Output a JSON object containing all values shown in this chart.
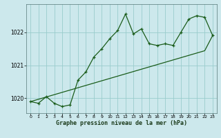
{
  "xlabel": "Graphe pression niveau de la mer (hPa)",
  "bg_color": "#cce8ec",
  "grid_color": "#99cccc",
  "line_color": "#1a5c1a",
  "x_values": [
    0,
    1,
    2,
    3,
    4,
    5,
    6,
    7,
    8,
    9,
    10,
    11,
    12,
    13,
    14,
    15,
    16,
    17,
    18,
    19,
    20,
    21,
    22,
    23
  ],
  "y_main": [
    1019.9,
    1019.85,
    1020.05,
    1019.85,
    1019.75,
    1019.8,
    1020.55,
    1020.8,
    1021.25,
    1021.5,
    1021.8,
    1022.05,
    1022.55,
    1021.95,
    1022.1,
    1021.65,
    1021.6,
    1021.65,
    1021.6,
    1022.0,
    1022.4,
    1022.5,
    1022.45,
    1021.9
  ],
  "y_linear": [
    1019.9,
    1019.97,
    1020.04,
    1020.11,
    1020.18,
    1020.25,
    1020.32,
    1020.39,
    1020.46,
    1020.53,
    1020.6,
    1020.67,
    1020.74,
    1020.81,
    1020.88,
    1020.95,
    1021.02,
    1021.09,
    1021.16,
    1021.23,
    1021.3,
    1021.37,
    1021.44,
    1021.9
  ],
  "ylim": [
    1019.55,
    1022.85
  ],
  "yticks": [
    1020,
    1021,
    1022
  ],
  "xticks": [
    0,
    1,
    2,
    3,
    4,
    5,
    6,
    7,
    8,
    9,
    10,
    11,
    12,
    13,
    14,
    15,
    16,
    17,
    18,
    19,
    20,
    21,
    22,
    23
  ]
}
